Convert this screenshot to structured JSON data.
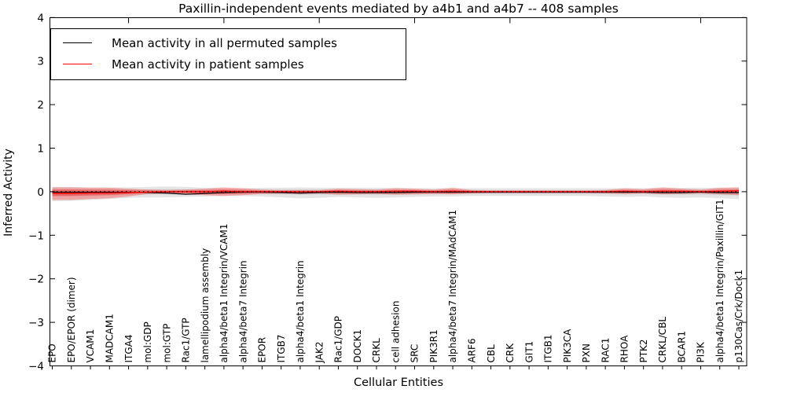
{
  "figure": {
    "background": "#ffffff",
    "axis_color": "#000000"
  },
  "chart_data": {
    "type": "line",
    "title": "Paxillin-independent events mediated by a4b1 and a4b7 -- 408 samples",
    "xlabel": "Cellular Entities",
    "ylabel": "Inferred Activity",
    "ylim": [
      -4,
      4
    ],
    "yticks": [
      4,
      3,
      2,
      1,
      0,
      -1,
      -2,
      -3,
      -4
    ],
    "grid": false,
    "legend_position": "upper left",
    "categories": [
      "EPO",
      "EPO/EPOR (dimer)",
      "VCAM1",
      "MADCAM1",
      "ITGA4",
      "mol:GDP",
      "mol:GTP",
      "Rac1/GTP",
      "lamellipodium assembly",
      "alpha4/beta1 Integrin/VCAM1",
      "alpha4/beta7 Integrin",
      "EPOR",
      "ITGB7",
      "alpha4/beta1 Integrin",
      "JAK2",
      "Rac1/GDP",
      "DOCK1",
      "CRKL",
      "cell adhesion",
      "SRC",
      "PIK3R1",
      "alpha4/beta7 Integrin/MAdCAM1",
      "ARF6",
      "CBL",
      "CRK",
      "GIT1",
      "ITGB1",
      "PIK3CA",
      "PXN",
      "RAC1",
      "RHOA",
      "PTK2",
      "CRKL/CBL",
      "BCAR1",
      "PI3K",
      "alpha4/beta1 Integrin/Paxillin/GIT1",
      "p130Cas/Crk/Dock1"
    ],
    "series": [
      {
        "name": "Mean activity in all permuted samples",
        "color": "#000000",
        "values": [
          -0.01,
          -0.01,
          -0.01,
          -0.01,
          -0.01,
          -0.02,
          -0.03,
          -0.06,
          -0.04,
          -0.02,
          -0.01,
          -0.01,
          -0.02,
          -0.03,
          -0.02,
          -0.01,
          -0.02,
          -0.02,
          -0.02,
          -0.01,
          -0.01,
          -0.01,
          -0.01,
          -0.01,
          -0.01,
          -0.01,
          -0.01,
          -0.01,
          -0.01,
          -0.01,
          -0.01,
          -0.01,
          -0.02,
          -0.02,
          -0.01,
          -0.02,
          -0.02
        ]
      },
      {
        "name": "Mean activity in patient samples",
        "color": "#ff0000",
        "values": [
          -0.04,
          -0.04,
          -0.03,
          -0.03,
          -0.02,
          -0.01,
          0,
          0,
          0,
          0.01,
          0,
          0,
          0,
          0,
          0,
          0.01,
          0,
          0,
          0.01,
          0.01,
          0,
          0.01,
          0,
          0,
          0,
          0,
          0,
          0,
          0,
          0,
          0.01,
          0,
          0.01,
          0.01,
          0,
          0.01,
          0.02
        ]
      }
    ],
    "bands": [
      {
        "name": "permuted samples range",
        "color": "#000000",
        "outer_opacity": 0.1,
        "inner_opacity": 0.08,
        "inner_scale": 0.5,
        "upper": [
          0.11,
          0.11,
          0.1,
          0.1,
          0.1,
          0.11,
          0.12,
          0.11,
          0.09,
          0.08,
          0.08,
          0.09,
          0.09,
          0.1,
          0.09,
          0.09,
          0.09,
          0.09,
          0.09,
          0.08,
          0.08,
          0.08,
          0.08,
          0.08,
          0.08,
          0.08,
          0.08,
          0.08,
          0.08,
          0.08,
          0.08,
          0.08,
          0.09,
          0.09,
          0.09,
          0.09,
          0.09
        ],
        "lower": [
          -0.22,
          -0.21,
          -0.19,
          -0.17,
          -0.14,
          -0.13,
          -0.13,
          -0.12,
          -0.11,
          -0.1,
          -0.1,
          -0.11,
          -0.13,
          -0.15,
          -0.14,
          -0.12,
          -0.13,
          -0.14,
          -0.13,
          -0.12,
          -0.11,
          -0.11,
          -0.1,
          -0.1,
          -0.1,
          -0.1,
          -0.1,
          -0.1,
          -0.1,
          -0.11,
          -0.12,
          -0.11,
          -0.13,
          -0.14,
          -0.13,
          -0.15,
          -0.17
        ]
      },
      {
        "name": "patient samples range",
        "color": "#ff0000",
        "outer_opacity": 0.28,
        "inner_opacity": 0.32,
        "inner_scale": 0.5,
        "upper": [
          0.1,
          0.1,
          0.09,
          0.09,
          0.07,
          0.05,
          0.04,
          0.05,
          0.07,
          0.1,
          0.08,
          0.05,
          0.04,
          0.04,
          0.04,
          0.07,
          0.06,
          0.05,
          0.08,
          0.07,
          0.05,
          0.09,
          0.04,
          0.03,
          0.03,
          0.03,
          0.03,
          0.03,
          0.03,
          0.04,
          0.08,
          0.06,
          0.1,
          0.07,
          0.05,
          0.09,
          0.1
        ],
        "lower": [
          -0.19,
          -0.19,
          -0.17,
          -0.15,
          -0.11,
          -0.05,
          -0.04,
          -0.06,
          -0.08,
          -0.1,
          -0.08,
          -0.05,
          -0.04,
          -0.05,
          -0.04,
          -0.07,
          -0.06,
          -0.05,
          -0.07,
          -0.06,
          -0.05,
          -0.06,
          -0.04,
          -0.03,
          -0.03,
          -0.03,
          -0.03,
          -0.03,
          -0.03,
          -0.04,
          -0.05,
          -0.04,
          -0.06,
          -0.05,
          -0.04,
          -0.06,
          -0.08
        ]
      }
    ],
    "zero_line": {
      "value": 0,
      "color": "#000000",
      "style": "dotted"
    }
  }
}
